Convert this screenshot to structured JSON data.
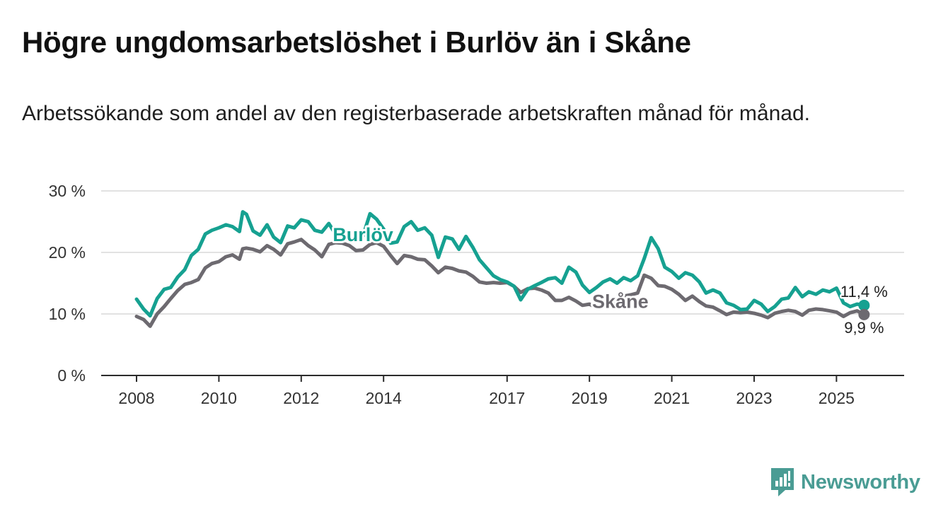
{
  "title": "Högre ungdomsarbetslöshet i Burlöv än i Skåne",
  "subtitle": "Arbetssökande som andel av den registerbaserade arbetskraften månad för månad.",
  "brand": {
    "name": "Newsworthy",
    "color": "#4a9c94"
  },
  "chart_data": {
    "type": "line",
    "title": "Högre ungdomsarbetslöshet i Burlöv än i Skåne",
    "xlabel": "",
    "ylabel": "",
    "xlim": [
      2008,
      2025.75
    ],
    "ylim": [
      0,
      30
    ],
    "yticks": [
      0,
      10,
      20,
      30
    ],
    "ytick_labels": [
      "0 %",
      "10 %",
      "20 %",
      "30 %"
    ],
    "xticks": [
      2008,
      2010,
      2012,
      2014,
      2017,
      2019,
      2021,
      2023,
      2025
    ],
    "xtick_labels": [
      "2008",
      "2010",
      "2012",
      "2014",
      "2017",
      "2019",
      "2021",
      "2023",
      "2025"
    ],
    "grid": true,
    "series": [
      {
        "name": "Burlöv",
        "color": "#16a191",
        "end_label": "11,4 %",
        "label_at": [
          2013.5,
          22.9
        ],
        "points": [
          [
            2008.0,
            12.4
          ],
          [
            2008.17,
            10.8
          ],
          [
            2008.33,
            9.7
          ],
          [
            2008.5,
            12.5
          ],
          [
            2008.67,
            14.0
          ],
          [
            2008.83,
            14.3
          ],
          [
            2009.0,
            16.0
          ],
          [
            2009.17,
            17.2
          ],
          [
            2009.33,
            19.5
          ],
          [
            2009.5,
            20.5
          ],
          [
            2009.67,
            23.0
          ],
          [
            2009.83,
            23.6
          ],
          [
            2010.0,
            24.0
          ],
          [
            2010.17,
            24.5
          ],
          [
            2010.33,
            24.2
          ],
          [
            2010.5,
            23.4
          ],
          [
            2010.58,
            26.6
          ],
          [
            2010.67,
            26.2
          ],
          [
            2010.83,
            23.5
          ],
          [
            2011.0,
            22.8
          ],
          [
            2011.17,
            24.5
          ],
          [
            2011.33,
            22.5
          ],
          [
            2011.5,
            21.6
          ],
          [
            2011.67,
            24.3
          ],
          [
            2011.83,
            24.0
          ],
          [
            2012.0,
            25.3
          ],
          [
            2012.17,
            25.0
          ],
          [
            2012.33,
            23.6
          ],
          [
            2012.5,
            23.3
          ],
          [
            2012.67,
            24.7
          ],
          [
            2012.83,
            23.0
          ],
          [
            2013.0,
            23.6
          ],
          [
            2013.17,
            23.3
          ],
          [
            2013.33,
            23.0
          ],
          [
            2013.5,
            22.7
          ],
          [
            2013.67,
            26.3
          ],
          [
            2013.83,
            25.4
          ],
          [
            2014.0,
            23.8
          ],
          [
            2014.17,
            21.5
          ],
          [
            2014.33,
            21.7
          ],
          [
            2014.5,
            24.2
          ],
          [
            2014.67,
            25.0
          ],
          [
            2014.83,
            23.6
          ],
          [
            2015.0,
            24.0
          ],
          [
            2015.17,
            22.8
          ],
          [
            2015.33,
            19.2
          ],
          [
            2015.5,
            22.5
          ],
          [
            2015.67,
            22.2
          ],
          [
            2015.83,
            20.5
          ],
          [
            2016.0,
            22.6
          ],
          [
            2016.17,
            20.8
          ],
          [
            2016.33,
            18.8
          ],
          [
            2016.5,
            17.5
          ],
          [
            2016.67,
            16.2
          ],
          [
            2016.83,
            15.6
          ],
          [
            2017.0,
            15.2
          ],
          [
            2017.17,
            14.5
          ],
          [
            2017.33,
            12.3
          ],
          [
            2017.5,
            14.0
          ],
          [
            2017.67,
            14.6
          ],
          [
            2017.83,
            15.1
          ],
          [
            2018.0,
            15.7
          ],
          [
            2018.17,
            15.9
          ],
          [
            2018.33,
            15.0
          ],
          [
            2018.5,
            17.6
          ],
          [
            2018.67,
            16.8
          ],
          [
            2018.83,
            14.7
          ],
          [
            2019.0,
            13.5
          ],
          [
            2019.17,
            14.3
          ],
          [
            2019.33,
            15.2
          ],
          [
            2019.5,
            15.7
          ],
          [
            2019.67,
            15.0
          ],
          [
            2019.83,
            15.9
          ],
          [
            2020.0,
            15.4
          ],
          [
            2020.17,
            16.2
          ],
          [
            2020.33,
            19.0
          ],
          [
            2020.5,
            22.4
          ],
          [
            2020.67,
            20.6
          ],
          [
            2020.83,
            17.6
          ],
          [
            2021.0,
            16.9
          ],
          [
            2021.17,
            15.8
          ],
          [
            2021.33,
            16.7
          ],
          [
            2021.5,
            16.3
          ],
          [
            2021.67,
            15.2
          ],
          [
            2021.83,
            13.4
          ],
          [
            2022.0,
            13.9
          ],
          [
            2022.17,
            13.4
          ],
          [
            2022.33,
            11.8
          ],
          [
            2022.5,
            11.4
          ],
          [
            2022.67,
            10.7
          ],
          [
            2022.83,
            10.8
          ],
          [
            2023.0,
            12.2
          ],
          [
            2023.17,
            11.6
          ],
          [
            2023.33,
            10.4
          ],
          [
            2023.5,
            11.2
          ],
          [
            2023.67,
            12.4
          ],
          [
            2023.83,
            12.6
          ],
          [
            2024.0,
            14.3
          ],
          [
            2024.17,
            12.8
          ],
          [
            2024.33,
            13.6
          ],
          [
            2024.5,
            13.2
          ],
          [
            2024.67,
            13.9
          ],
          [
            2024.83,
            13.6
          ],
          [
            2025.0,
            14.2
          ],
          [
            2025.17,
            11.8
          ],
          [
            2025.33,
            11.2
          ],
          [
            2025.5,
            11.6
          ],
          [
            2025.67,
            11.4
          ]
        ]
      },
      {
        "name": "Skåne",
        "color": "#6d6a70",
        "end_label": "9,9 %",
        "label_at": [
          2019.75,
          12.0
        ],
        "points": [
          [
            2008.0,
            9.6
          ],
          [
            2008.17,
            9.1
          ],
          [
            2008.33,
            8.0
          ],
          [
            2008.5,
            10.0
          ],
          [
            2008.67,
            11.2
          ],
          [
            2008.83,
            12.5
          ],
          [
            2009.0,
            13.8
          ],
          [
            2009.17,
            14.8
          ],
          [
            2009.33,
            15.1
          ],
          [
            2009.5,
            15.6
          ],
          [
            2009.67,
            17.5
          ],
          [
            2009.83,
            18.2
          ],
          [
            2010.0,
            18.5
          ],
          [
            2010.17,
            19.3
          ],
          [
            2010.33,
            19.6
          ],
          [
            2010.5,
            18.9
          ],
          [
            2010.58,
            20.6
          ],
          [
            2010.67,
            20.7
          ],
          [
            2010.83,
            20.5
          ],
          [
            2011.0,
            20.1
          ],
          [
            2011.17,
            21.1
          ],
          [
            2011.33,
            20.5
          ],
          [
            2011.5,
            19.6
          ],
          [
            2011.67,
            21.4
          ],
          [
            2011.83,
            21.7
          ],
          [
            2012.0,
            22.1
          ],
          [
            2012.17,
            21.1
          ],
          [
            2012.33,
            20.4
          ],
          [
            2012.5,
            19.3
          ],
          [
            2012.67,
            21.3
          ],
          [
            2012.83,
            21.6
          ],
          [
            2013.0,
            21.5
          ],
          [
            2013.17,
            21.1
          ],
          [
            2013.33,
            20.3
          ],
          [
            2013.5,
            20.4
          ],
          [
            2013.67,
            21.3
          ],
          [
            2013.83,
            21.6
          ],
          [
            2014.0,
            21.0
          ],
          [
            2014.17,
            19.5
          ],
          [
            2014.33,
            18.2
          ],
          [
            2014.5,
            19.5
          ],
          [
            2014.67,
            19.3
          ],
          [
            2014.83,
            18.9
          ],
          [
            2015.0,
            18.8
          ],
          [
            2015.17,
            17.8
          ],
          [
            2015.33,
            16.7
          ],
          [
            2015.5,
            17.6
          ],
          [
            2015.67,
            17.4
          ],
          [
            2015.83,
            17.0
          ],
          [
            2016.0,
            16.8
          ],
          [
            2016.17,
            16.1
          ],
          [
            2016.33,
            15.2
          ],
          [
            2016.5,
            15.0
          ],
          [
            2016.67,
            15.1
          ],
          [
            2016.83,
            15.0
          ],
          [
            2017.0,
            15.1
          ],
          [
            2017.17,
            14.5
          ],
          [
            2017.33,
            13.5
          ],
          [
            2017.5,
            14.1
          ],
          [
            2017.67,
            14.2
          ],
          [
            2017.83,
            13.9
          ],
          [
            2018.0,
            13.4
          ],
          [
            2018.17,
            12.2
          ],
          [
            2018.33,
            12.2
          ],
          [
            2018.5,
            12.7
          ],
          [
            2018.67,
            12.1
          ],
          [
            2018.83,
            11.4
          ],
          [
            2019.0,
            11.6
          ],
          [
            2019.17,
            11.0
          ],
          [
            2019.33,
            11.6
          ],
          [
            2019.5,
            12.0
          ],
          [
            2019.67,
            12.2
          ],
          [
            2019.83,
            12.9
          ],
          [
            2020.0,
            13.1
          ],
          [
            2020.17,
            13.4
          ],
          [
            2020.33,
            16.3
          ],
          [
            2020.5,
            15.8
          ],
          [
            2020.67,
            14.6
          ],
          [
            2020.83,
            14.5
          ],
          [
            2021.0,
            14.0
          ],
          [
            2021.17,
            13.2
          ],
          [
            2021.33,
            12.2
          ],
          [
            2021.5,
            12.9
          ],
          [
            2021.67,
            12.0
          ],
          [
            2021.83,
            11.3
          ],
          [
            2022.0,
            11.1
          ],
          [
            2022.17,
            10.5
          ],
          [
            2022.33,
            9.9
          ],
          [
            2022.5,
            10.3
          ],
          [
            2022.67,
            10.2
          ],
          [
            2022.83,
            10.3
          ],
          [
            2023.0,
            10.1
          ],
          [
            2023.17,
            9.8
          ],
          [
            2023.33,
            9.4
          ],
          [
            2023.5,
            10.1
          ],
          [
            2023.67,
            10.4
          ],
          [
            2023.83,
            10.6
          ],
          [
            2024.0,
            10.4
          ],
          [
            2024.17,
            9.8
          ],
          [
            2024.33,
            10.6
          ],
          [
            2024.5,
            10.8
          ],
          [
            2024.67,
            10.7
          ],
          [
            2024.83,
            10.5
          ],
          [
            2025.0,
            10.3
          ],
          [
            2025.17,
            9.6
          ],
          [
            2025.33,
            10.2
          ],
          [
            2025.5,
            10.5
          ],
          [
            2025.67,
            9.9
          ]
        ]
      }
    ]
  }
}
